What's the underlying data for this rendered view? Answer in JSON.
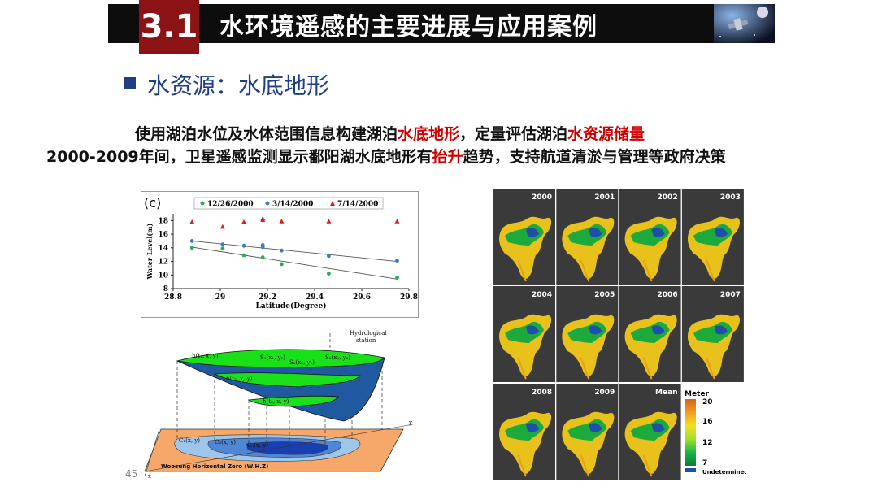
{
  "header": {
    "number": "3.1",
    "title": "水环境遥感的主要进展与应用案例"
  },
  "section": {
    "title": "水资源：水底地形"
  },
  "text": {
    "line1_a": "使用湖泊水位及水体范围信息构建湖泊",
    "line1_b": "水底地形",
    "line1_c": "，定量评估湖泊",
    "line1_d": "水资源储量",
    "line2_a": "2000-2009年间，卫星遥感监测显示鄱阳湖水底地形有",
    "line2_b": "抬升",
    "line2_c": "趋势，支持航道清淤与管理等政府决策"
  },
  "chart_data": {
    "type": "scatter",
    "panel_label": "(c)",
    "xlabel": "Latitude(Degree)",
    "ylabel": "Water Level(m)",
    "xlim": [
      28.8,
      29.8
    ],
    "ylim": [
      8,
      19
    ],
    "xticks": [
      "28.8",
      "29",
      "29.2",
      "29.4",
      "29.6",
      "29.8"
    ],
    "yticks": [
      "8",
      "10",
      "12",
      "14",
      "16",
      "18"
    ],
    "legend_position": "top",
    "series": [
      {
        "name": "12/26/2000",
        "marker": "circle",
        "color": "#22b24c",
        "x": [
          28.88,
          29.01,
          29.1,
          29.18,
          29.26,
          29.46,
          29.75
        ],
        "y": [
          14.0,
          13.9,
          12.9,
          12.6,
          11.6,
          10.2,
          9.6
        ],
        "trend": [
          [
            28.88,
            14.1
          ],
          [
            29.75,
            9.4
          ]
        ]
      },
      {
        "name": "3/14/2000",
        "marker": "circle",
        "color": "#3a7cc8",
        "x": [
          28.88,
          29.01,
          29.1,
          29.18,
          29.18,
          29.26,
          29.46,
          29.75
        ],
        "y": [
          15.0,
          14.5,
          14.3,
          14.4,
          14.1,
          13.6,
          12.8,
          12.1
        ],
        "trend": [
          [
            28.88,
            15.0
          ],
          [
            29.75,
            12.0
          ]
        ]
      },
      {
        "name": "7/14/2000",
        "marker": "triangle",
        "color": "#d81e1e",
        "x": [
          28.88,
          29.01,
          29.1,
          29.18,
          29.18,
          29.26,
          29.46,
          29.75
        ],
        "y": [
          17.8,
          17.1,
          17.8,
          18.1,
          18.3,
          17.9,
          17.9,
          17.9
        ]
      }
    ]
  },
  "diagram": {
    "station_label_1": "Hydrological",
    "station_label_2": "station",
    "h1": "h(t₁, x, y)",
    "h2": "h(t₂, x, y)",
    "h3": "h(t₃, x, y)",
    "s1": "S₁(x₁, y₁)",
    "s2": "S₂(x₂, y₂)",
    "s3": "S₃(x₃, y₃)",
    "c1": "C₁(x, y)",
    "c2": "C₂(x, y)",
    "c3": "C₃(x, y)",
    "plane_label": "Woosung Horizontal Zero (W.H.Z)",
    "axis_x": "x",
    "axis_y": "y"
  },
  "maps": {
    "years": [
      "2000",
      "2001",
      "2002",
      "2003",
      "2004",
      "2005",
      "2006",
      "2007",
      "2008",
      "2009",
      "Mean"
    ]
  },
  "legend": {
    "title": "Meter",
    "ticks": [
      "20",
      "16",
      "12",
      "7"
    ],
    "undetermined": "Undetermined",
    "colors": [
      "#d2641e",
      "#f0a020",
      "#f2e020",
      "#9fe030",
      "#19b443",
      "#0f7a3a"
    ],
    "undetermined_color": "#1f4fa8"
  },
  "page_number": "45"
}
